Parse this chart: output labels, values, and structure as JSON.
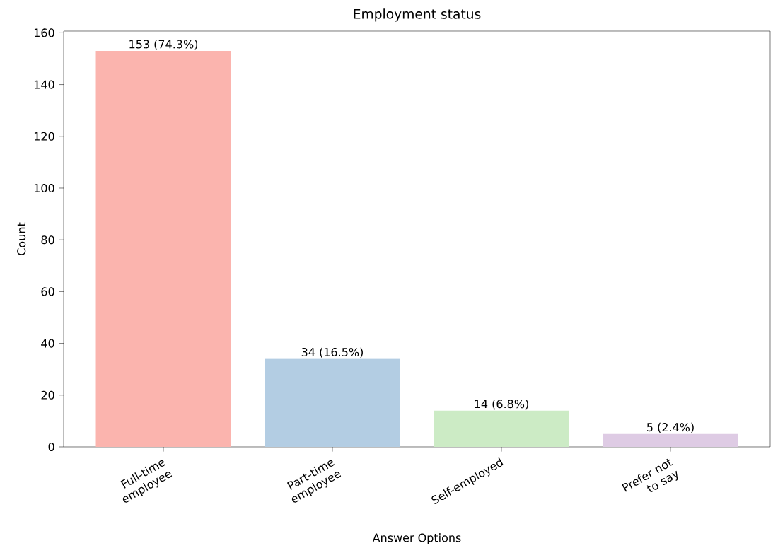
{
  "chart_data": {
    "type": "bar",
    "title": "Employment status",
    "xlabel": "Answer Options",
    "ylabel": "Count",
    "categories": [
      "Full-time employee",
      "Part-time employee",
      "Self-employed",
      "Prefer not to say"
    ],
    "values": [
      153,
      34,
      14,
      5
    ],
    "colors": [
      "#fbb4ae",
      "#b3cde3",
      "#ccebc5",
      "#decbe4"
    ],
    "value_labels": [
      "153 (74.3%)",
      "34 (16.5%)",
      "14 (6.8%)",
      "5 (2.4%)"
    ],
    "ylim": [
      0,
      160.65
    ],
    "yticks": [
      0,
      20,
      40,
      60,
      80,
      100,
      120,
      140,
      160
    ],
    "grid": false
  }
}
